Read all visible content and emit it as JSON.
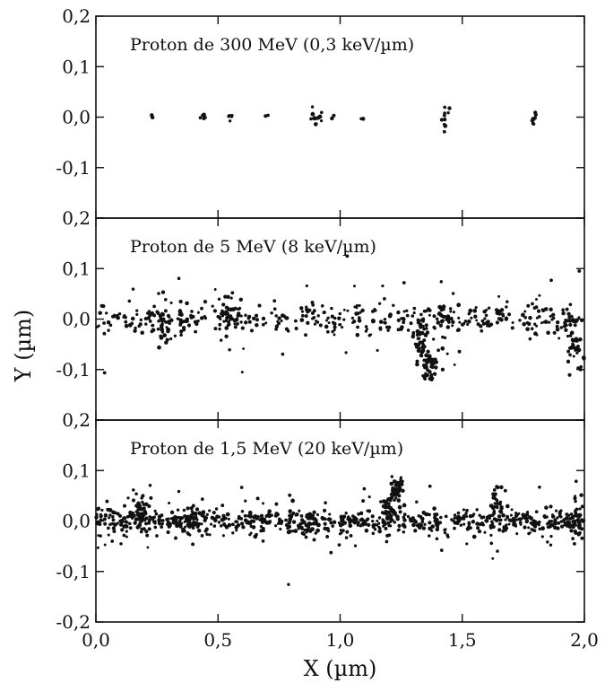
{
  "chart_data": {
    "type": "scatter",
    "xlabel": "X (µm)",
    "ylabel": "Y (µm)",
    "xlim": [
      0.0,
      2.0
    ],
    "ylim": [
      -0.2,
      0.2
    ],
    "x_ticks": [
      "0,0",
      "0,5",
      "1,0",
      "1,5",
      "2,0"
    ],
    "y_ticks": [
      "-0,2",
      "-0,1",
      "0,0",
      "0,1",
      "0,2"
    ],
    "grid": false,
    "panels": [
      {
        "title": "Proton de 300 MeV  (0,3 keV/µm)",
        "clusters": [
          {
            "x": 0.23,
            "y": 0.0,
            "n": 2,
            "spread": 0.004
          },
          {
            "x": 0.44,
            "y": 0.002,
            "n": 5,
            "spread": 0.006
          },
          {
            "x": 0.55,
            "y": 0.003,
            "n": 5,
            "spread": 0.006
          },
          {
            "x": 0.7,
            "y": 0.0,
            "n": 2,
            "spread": 0.004
          },
          {
            "x": 0.89,
            "y": 0.002,
            "n": 7,
            "spread": 0.009
          },
          {
            "x": 0.92,
            "y": 0.0,
            "n": 4,
            "spread": 0.006
          },
          {
            "x": 0.97,
            "y": 0.0,
            "n": 3,
            "spread": 0.005
          },
          {
            "x": 1.09,
            "y": 0.0,
            "n": 2,
            "spread": 0.004
          },
          {
            "x": 1.43,
            "y": 0.0,
            "n": 10,
            "spread": 0.012
          },
          {
            "x": 1.79,
            "y": 0.0,
            "n": 8,
            "spread": 0.006
          }
        ]
      },
      {
        "title": "Proton de 5 MeV  (8 keV/µm)",
        "band": {
          "x_range": [
            0.0,
            2.0
          ],
          "y": 0.0,
          "n": 360,
          "spread": 0.013
        },
        "clusters": [
          {
            "x": 0.27,
            "y": -0.01,
            "n": 25,
            "spread": 0.02
          },
          {
            "x": 0.53,
            "y": 0.01,
            "n": 30,
            "spread": 0.025
          },
          {
            "x": 1.32,
            "y": -0.05,
            "n": 35,
            "spread": 0.02
          },
          {
            "x": 1.37,
            "y": -0.095,
            "n": 40,
            "spread": 0.018
          },
          {
            "x": 1.42,
            "y": 0.0,
            "n": 20,
            "spread": 0.02
          },
          {
            "x": 1.96,
            "y": -0.05,
            "n": 30,
            "spread": 0.018
          }
        ],
        "sparse": {
          "n": 90,
          "spread": 0.05
        }
      },
      {
        "title": "Proton de 1,5 MeV  (20 keV/µm)",
        "band": {
          "x_range": [
            0.0,
            2.0
          ],
          "y": 0.0,
          "n": 620,
          "spread": 0.012
        },
        "clusters": [
          {
            "x": 0.18,
            "y": 0.01,
            "n": 40,
            "spread": 0.018
          },
          {
            "x": 0.38,
            "y": 0.01,
            "n": 25,
            "spread": 0.015
          },
          {
            "x": 0.87,
            "y": -0.02,
            "n": 20,
            "spread": 0.015
          },
          {
            "x": 1.2,
            "y": 0.03,
            "n": 30,
            "spread": 0.02
          },
          {
            "x": 1.23,
            "y": 0.065,
            "n": 35,
            "spread": 0.012
          },
          {
            "x": 1.65,
            "y": 0.035,
            "n": 30,
            "spread": 0.018
          },
          {
            "x": 1.97,
            "y": 0.0,
            "n": 40,
            "spread": 0.018
          }
        ],
        "sparse": {
          "n": 110,
          "spread": 0.04
        }
      }
    ]
  }
}
